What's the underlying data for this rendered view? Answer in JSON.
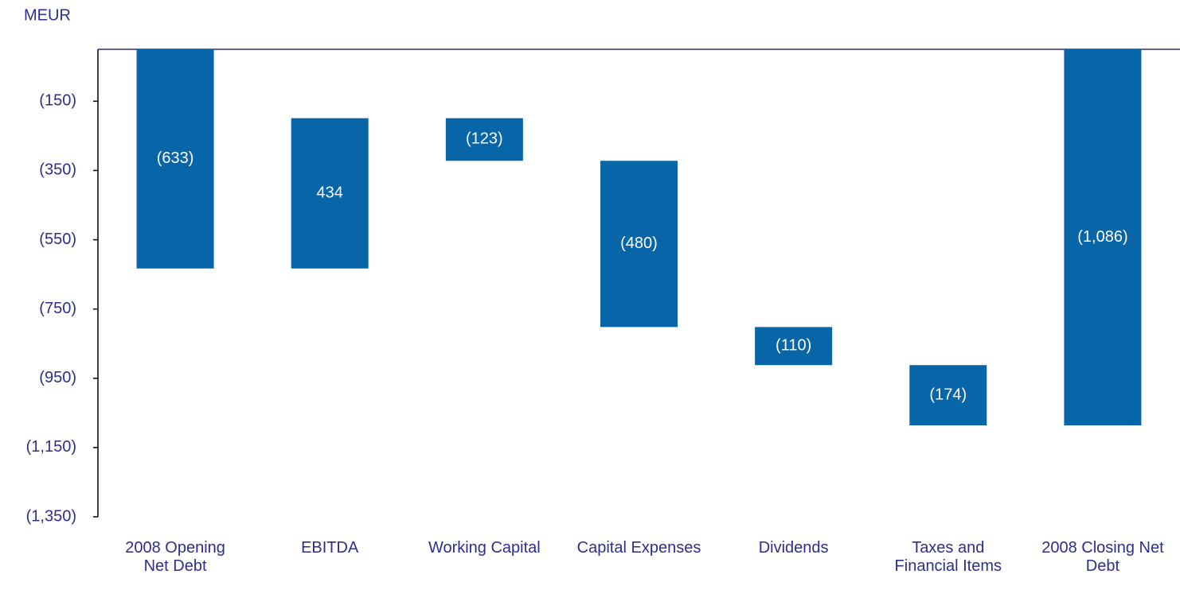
{
  "chart_data": {
    "type": "waterfall",
    "y_label": "MEUR",
    "categories": [
      "2008 Opening Net Debt",
      "EBITDA",
      "Working Capital",
      "Capital Expenses",
      "Dividends",
      "Taxes and Financial Items",
      "2008 Closing Net Debt"
    ],
    "values": [
      -633,
      434,
      -123,
      -480,
      -110,
      -174,
      -1086
    ],
    "value_labels": [
      "(633)",
      "434",
      "(123)",
      "(480)",
      "(110)",
      "(174)",
      "(1,086)"
    ],
    "color": "#0866a8",
    "ylim": [
      -1350,
      0
    ],
    "yticks": [
      {
        "value": -150,
        "label": "(150)"
      },
      {
        "value": -350,
        "label": "(350)"
      },
      {
        "value": -550,
        "label": "(550)"
      },
      {
        "value": -750,
        "label": "(750)"
      },
      {
        "value": -950,
        "label": "(950)"
      },
      {
        "value": -1150,
        "label": "(1,150)"
      },
      {
        "value": -1350,
        "label": "(1,350)"
      }
    ]
  }
}
